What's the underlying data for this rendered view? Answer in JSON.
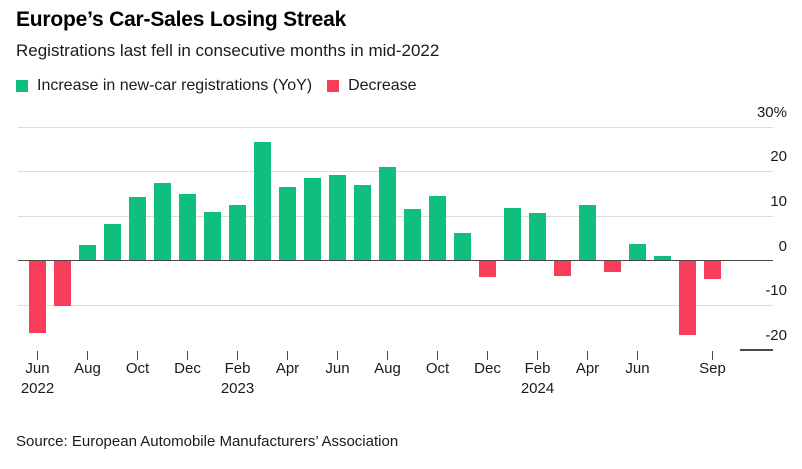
{
  "header": {
    "title": "Europe’s Car-Sales Losing Streak",
    "subtitle": "Registrations last fell in consecutive months in mid-2022"
  },
  "legend": {
    "increase_label": "Increase in new-car registrations (YoY)",
    "decrease_label": "Decrease"
  },
  "colors": {
    "increase": "#10be7e",
    "decrease": "#f73e5b",
    "axis": "#4a4a4a",
    "grid": "#dcdcdc",
    "tick": "#4a4a4a",
    "text": "#1a1a1a"
  },
  "chart_data": {
    "type": "bar",
    "title": "Europe’s Car-Sales Losing Streak",
    "subtitle": "Registrations last fell in consecutive months in mid-2022",
    "unit": "%",
    "ylabel": "",
    "xlabel": "",
    "ylim": [
      -20,
      30
    ],
    "grid": "horizontal",
    "legend_position": "top",
    "x": [
      "Jun 2022",
      "Jul 2022",
      "Aug 2022",
      "Sep 2022",
      "Oct 2022",
      "Nov 2022",
      "Dec 2022",
      "Jan 2023",
      "Feb 2023",
      "Mar 2023",
      "Apr 2023",
      "May 2023",
      "Jun 2023",
      "Jul 2023",
      "Aug 2023",
      "Sep 2023",
      "Oct 2023",
      "Nov 2023",
      "Dec 2023",
      "Jan 2024",
      "Feb 2024",
      "Mar 2024",
      "Apr 2024",
      "May 2024",
      "Jun 2024",
      "Jul 2024",
      "Aug 2024",
      "Sep 2024"
    ],
    "values": [
      -16,
      -10,
      3.4,
      8,
      14,
      17.2,
      14.8,
      10.8,
      12.2,
      26.4,
      16.2,
      18.4,
      19,
      16.7,
      20.7,
      11.3,
      14.2,
      6,
      -3.5,
      11.5,
      10.4,
      -3.3,
      12.3,
      -2.5,
      3.5,
      0.8,
      -16.5,
      -4
    ],
    "series_colors": {
      "positive": "#10be7e",
      "negative": "#f73e5b"
    },
    "y_ticks": [
      30,
      20,
      10,
      0,
      -10,
      -20
    ],
    "y_tick_labels": [
      "30%",
      "20",
      "10",
      "0",
      "-10",
      "-20"
    ],
    "x_ticks": [
      {
        "index": 0,
        "label": "Jun",
        "year": "2022"
      },
      {
        "index": 2,
        "label": "Aug"
      },
      {
        "index": 4,
        "label": "Oct"
      },
      {
        "index": 6,
        "label": "Dec"
      },
      {
        "index": 8,
        "label": "Feb",
        "year": "2023"
      },
      {
        "index": 10,
        "label": "Apr"
      },
      {
        "index": 12,
        "label": "Jun"
      },
      {
        "index": 14,
        "label": "Aug"
      },
      {
        "index": 16,
        "label": "Oct"
      },
      {
        "index": 18,
        "label": "Dec"
      },
      {
        "index": 20,
        "label": "Feb",
        "year": "2024"
      },
      {
        "index": 22,
        "label": "Apr"
      },
      {
        "index": 24,
        "label": "Jun"
      },
      {
        "index": 27,
        "label": "Sep"
      }
    ]
  },
  "footer": {
    "source": "Source: European Automobile Manufacturers’ Association"
  }
}
